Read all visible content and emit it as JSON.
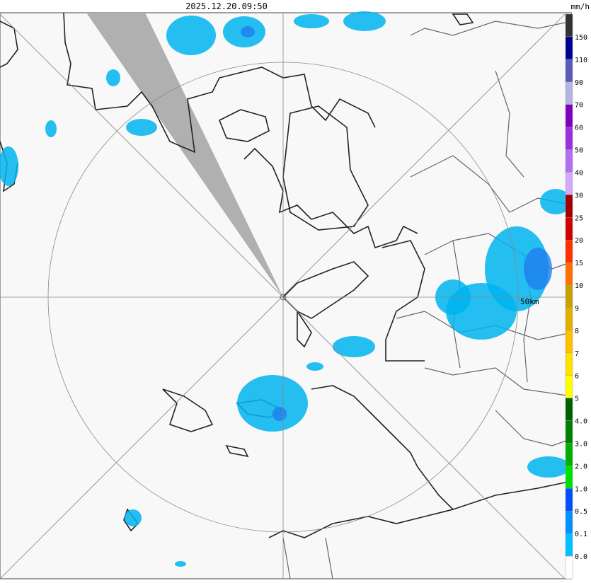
{
  "header": {
    "timestamp": "2025.12.20.09:50"
  },
  "map": {
    "range_label": "50km"
  },
  "legend": {
    "unit": "mm/h",
    "labels": [
      "150",
      "110",
      "90",
      "70",
      "60",
      "50",
      "40",
      "30",
      "25",
      "20",
      "15",
      "10",
      "9",
      "8",
      "7",
      "6",
      "5",
      "4.0",
      "3.0",
      "2.0",
      "1.0",
      "0.5",
      "0.1",
      "0.0"
    ],
    "colors": [
      "#333333",
      "#000090",
      "#5a5ab8",
      "#b4b4e0",
      "#8000c0",
      "#9a30e0",
      "#b070f0",
      "#d4a8f8",
      "#a00000",
      "#d00000",
      "#ff3000",
      "#ff7000",
      "#c8a000",
      "#e0b000",
      "#ffc000",
      "#ffe000",
      "#ffff00",
      "#006000",
      "#008000",
      "#00b000",
      "#00e000",
      "#0050ff",
      "#0090ff",
      "#00c0ff",
      "#ffffff"
    ]
  }
}
